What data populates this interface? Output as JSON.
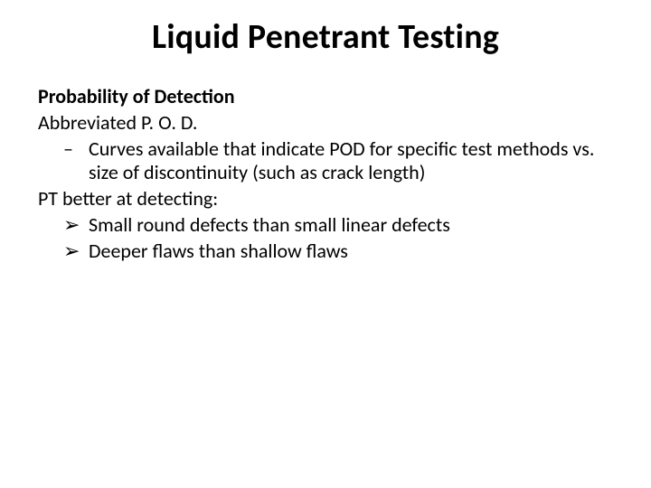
{
  "slide": {
    "title": "Liquid Penetrant Testing",
    "subheading": "Probability of Detection",
    "line_abbrev": "Abbreviated P. O. D.",
    "bullet_dash": "–",
    "bullet_curves": "Curves available that indicate POD for specific test methods vs. size of discontinuity (such as crack length)",
    "line_pt_better": "PT better at detecting:",
    "bullet_arrow": "➢",
    "bullet_small": "Small round defects than small linear defects",
    "bullet_deeper": "Deeper flaws than shallow flaws"
  },
  "style": {
    "background_color": "#ffffff",
    "text_color": "#000000",
    "title_fontsize": 38,
    "body_fontsize": 22,
    "title_weight": 700,
    "subheading_weight": 700,
    "font_family": "Calibri"
  }
}
